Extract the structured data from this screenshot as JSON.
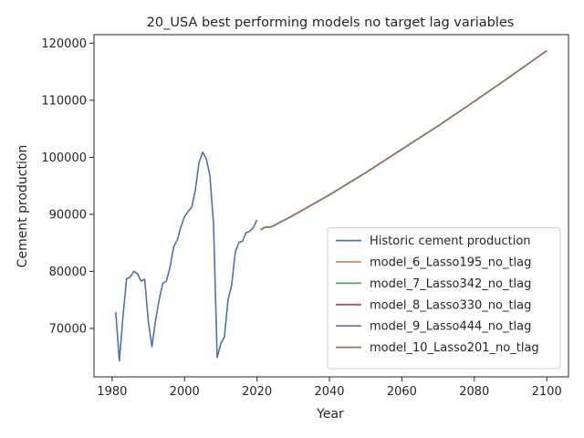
{
  "chart_data": {
    "type": "line",
    "title": "20_USA best performing models no target lag variables",
    "xlabel": "Year",
    "ylabel": "Cement production",
    "xlim": [
      1975,
      2106
    ],
    "ylim": [
      61500,
      121500
    ],
    "xticks": [
      1980,
      2000,
      2020,
      2040,
      2060,
      2080,
      2100
    ],
    "yticks": [
      70000,
      80000,
      90000,
      100000,
      110000,
      120000
    ],
    "grid": false,
    "legend_position": "lower right",
    "series": [
      {
        "name": "Historic cement production",
        "color": "#4c72b0",
        "x": [
          1981,
          1982,
          1983,
          1984,
          1985,
          1986,
          1987,
          1988,
          1989,
          1990,
          1991,
          1992,
          1993,
          1994,
          1995,
          1996,
          1997,
          1998,
          1999,
          2000,
          2001,
          2002,
          2003,
          2004,
          2005,
          2006,
          2007,
          2008,
          2009,
          2010,
          2011,
          2012,
          2013,
          2014,
          2015,
          2016,
          2017,
          2018,
          2019,
          2020
        ],
        "y": [
          72900,
          64300,
          72100,
          78700,
          79000,
          80000,
          79600,
          78300,
          78600,
          71300,
          66800,
          71400,
          75100,
          77900,
          78300,
          80800,
          84300,
          85500,
          87800,
          89600,
          90500,
          91300,
          94300,
          99100,
          100900,
          99700,
          96800,
          88300,
          64900,
          67300,
          68500,
          75000,
          77500,
          83300,
          85100,
          85300,
          86800,
          87000,
          87700,
          89000
        ]
      },
      {
        "name": "model_6_Lasso195_no_tlag",
        "color": "#dd8452",
        "x": [
          2021,
          2022,
          2024,
          2030,
          2040,
          2050,
          2060,
          2070,
          2080,
          2090,
          2100
        ],
        "y": [
          87300,
          87700,
          87800,
          89800,
          93400,
          97300,
          101400,
          105500,
          109800,
          114200,
          118700
        ]
      },
      {
        "name": "model_7_Lasso342_no_tlag",
        "color": "#55a868",
        "x": [
          2021,
          2022,
          2024,
          2030,
          2040,
          2050,
          2060,
          2070,
          2080,
          2090,
          2100
        ],
        "y": [
          87300,
          87700,
          87800,
          89800,
          93400,
          97300,
          101400,
          105500,
          109800,
          114200,
          118700
        ]
      },
      {
        "name": "model_8_Lasso330_no_tlag",
        "color": "#c44e52",
        "x": [
          2021,
          2022,
          2024,
          2030,
          2040,
          2050,
          2060,
          2070,
          2080,
          2090,
          2100
        ],
        "y": [
          87300,
          87700,
          87800,
          89800,
          93400,
          97300,
          101400,
          105500,
          109800,
          114200,
          118700
        ]
      },
      {
        "name": "model_9_Lasso444_no_tlag",
        "color": "#8172b3",
        "x": [
          2021,
          2022,
          2024,
          2030,
          2040,
          2050,
          2060,
          2070,
          2080,
          2090,
          2100
        ],
        "y": [
          87300,
          87700,
          87800,
          89800,
          93400,
          97300,
          101400,
          105500,
          109800,
          114200,
          118700
        ]
      },
      {
        "name": "model_10_Lasso201_no_tlag",
        "color": "#937860",
        "x": [
          2021,
          2022,
          2024,
          2030,
          2040,
          2050,
          2060,
          2070,
          2080,
          2090,
          2100
        ],
        "y": [
          87300,
          87700,
          87800,
          89800,
          93400,
          97300,
          101400,
          105500,
          109800,
          114200,
          118700
        ]
      }
    ]
  }
}
